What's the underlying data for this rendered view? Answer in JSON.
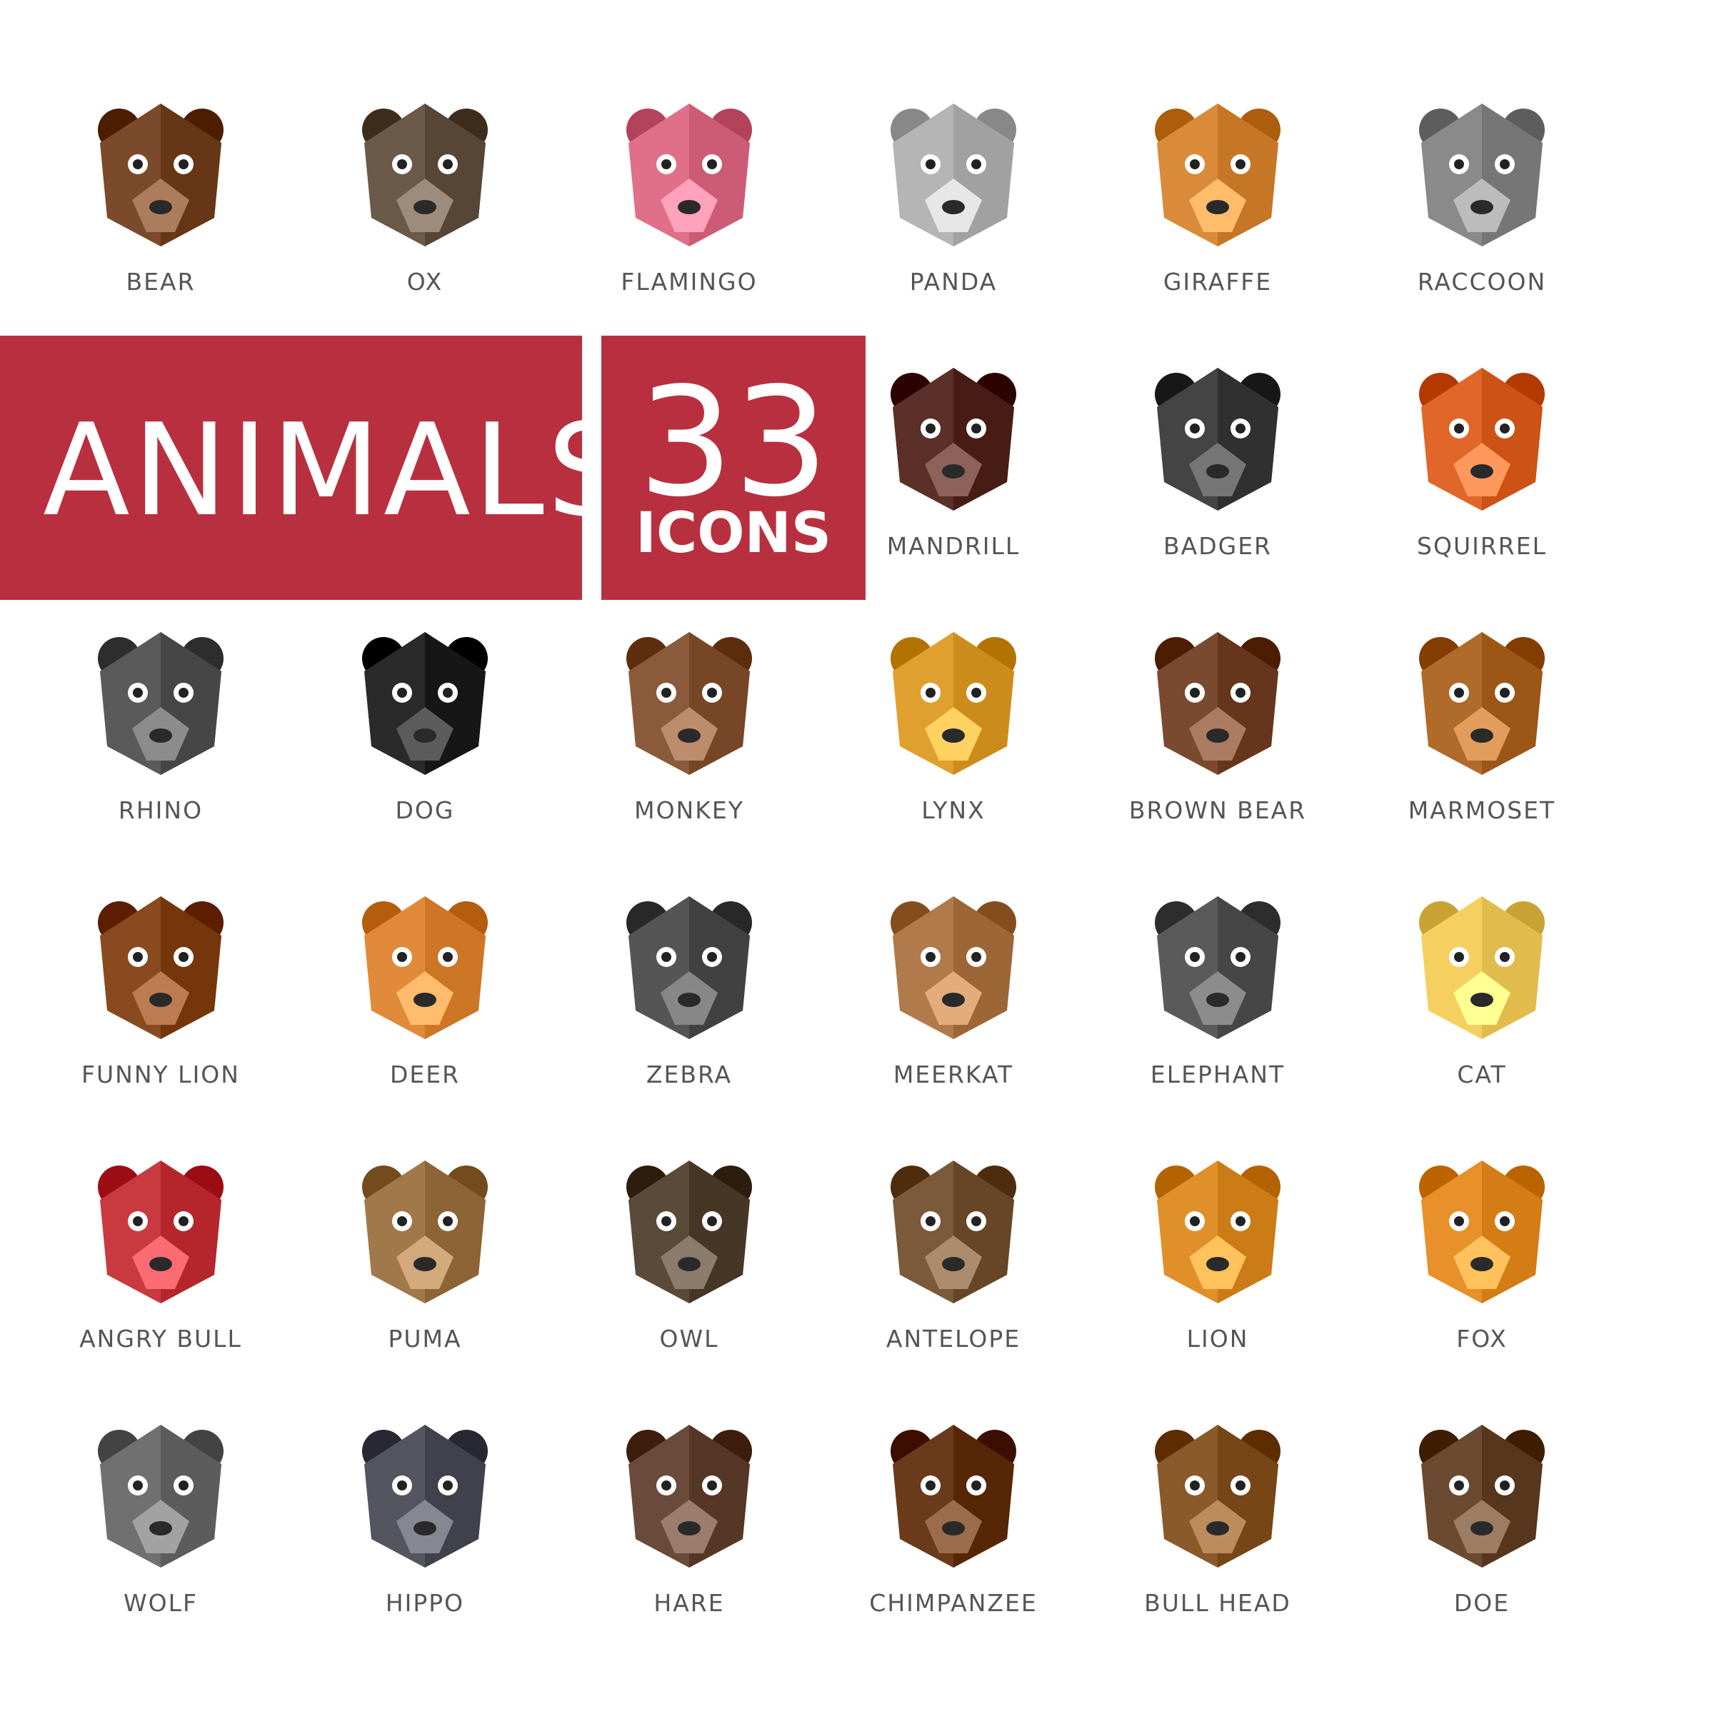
{
  "banner": {
    "title": "ANIMALS",
    "count": "33",
    "count_label": "ICONS"
  },
  "icons": [
    {
      "label": "BEAR",
      "icon": "bear-icon",
      "color": "#7a4a2a"
    },
    {
      "label": "OX",
      "icon": "ox-icon",
      "color": "#6b5a4a"
    },
    {
      "label": "FLAMINGO",
      "icon": "flamingo-icon",
      "color": "#e0708a"
    },
    {
      "label": "PANDA",
      "icon": "panda-icon",
      "color": "#b5b5b5"
    },
    {
      "label": "GIRAFFE",
      "icon": "giraffe-icon",
      "color": "#d98b3a"
    },
    {
      "label": "RACCOON",
      "icon": "raccoon-icon",
      "color": "#8a8a8a"
    },
    {
      "label": "MANDRILL",
      "icon": "mandrill-icon",
      "color": "#5a3028"
    },
    {
      "label": "BADGER",
      "icon": "badger-icon",
      "color": "#444444"
    },
    {
      "label": "SQUIRREL",
      "icon": "squirrel-icon",
      "color": "#e0662a"
    },
    {
      "label": "RHINO",
      "icon": "rhino-icon",
      "color": "#5a5a5a"
    },
    {
      "label": "DOG",
      "icon": "dog-icon",
      "color": "#2a2a2a"
    },
    {
      "label": "MONKEY",
      "icon": "monkey-icon",
      "color": "#8a5a3a"
    },
    {
      "label": "LYNX",
      "icon": "lynx-icon",
      "color": "#e0a030"
    },
    {
      "label": "BROWN BEAR",
      "icon": "brown-bear-icon",
      "color": "#7a4a30"
    },
    {
      "label": "MARMOSET",
      "icon": "marmoset-icon",
      "color": "#b06a2a"
    },
    {
      "label": "FUNNY LION",
      "icon": "funny-lion-icon",
      "color": "#8a4a20"
    },
    {
      "label": "DEER",
      "icon": "deer-icon",
      "color": "#e08a3a"
    },
    {
      "label": "ZEBRA",
      "icon": "zebra-icon",
      "color": "#555555"
    },
    {
      "label": "MEERKAT",
      "icon": "meerkat-icon",
      "color": "#b07a4a"
    },
    {
      "label": "ELEPHANT",
      "icon": "elephant-icon",
      "color": "#5a5a5a"
    },
    {
      "label": "CAT",
      "icon": "cat-icon",
      "color": "#f5d060"
    },
    {
      "label": "ANGRY BULL",
      "icon": "angry-bull-icon",
      "color": "#c83a40"
    },
    {
      "label": "PUMA",
      "icon": "puma-icon",
      "color": "#a0784a"
    },
    {
      "label": "OWL",
      "icon": "owl-icon",
      "color": "#5a4a3a"
    },
    {
      "label": "ANTELOPE",
      "icon": "antelope-icon",
      "color": "#7a5a3a"
    },
    {
      "label": "LION",
      "icon": "lion-icon",
      "color": "#e0902a"
    },
    {
      "label": "FOX",
      "icon": "fox-icon",
      "color": "#e8902a"
    },
    {
      "label": "WOLF",
      "icon": "wolf-icon",
      "color": "#707070"
    },
    {
      "label": "HIPPO",
      "icon": "hippo-icon",
      "color": "#555560"
    },
    {
      "label": "HARE",
      "icon": "hare-icon",
      "color": "#6a4a3a"
    },
    {
      "label": "CHIMPANZEE",
      "icon": "chimpanzee-icon",
      "color": "#6a3a1a"
    },
    {
      "label": "BULL HEAD",
      "icon": "bull-head-icon",
      "color": "#8a5a2a"
    },
    {
      "label": "DOE",
      "icon": "doe-icon",
      "color": "#6a4a30"
    }
  ]
}
